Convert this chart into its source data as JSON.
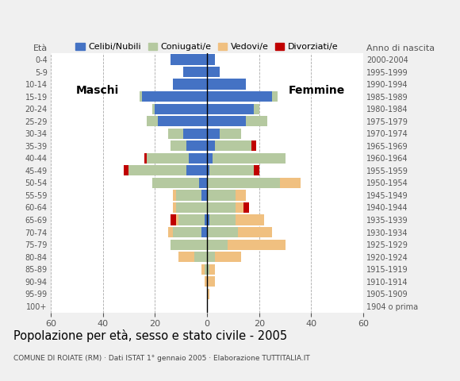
{
  "age_groups": [
    "100+",
    "95-99",
    "90-94",
    "85-89",
    "80-84",
    "75-79",
    "70-74",
    "65-69",
    "60-64",
    "55-59",
    "50-54",
    "45-49",
    "40-44",
    "35-39",
    "30-34",
    "25-29",
    "20-24",
    "15-19",
    "10-14",
    "5-9",
    "0-4"
  ],
  "birth_years": [
    "1904 o prima",
    "1905-1909",
    "1910-1914",
    "1915-1919",
    "1920-1924",
    "1925-1929",
    "1930-1934",
    "1935-1939",
    "1940-1944",
    "1945-1949",
    "1950-1954",
    "1955-1959",
    "1960-1964",
    "1965-1969",
    "1970-1974",
    "1975-1979",
    "1980-1984",
    "1985-1989",
    "1990-1994",
    "1995-1999",
    "2000-2004"
  ],
  "colors": {
    "celibe": "#4472c4",
    "coniugato": "#b5c9a0",
    "vedovo": "#f0c080",
    "divorziato": "#c00000"
  },
  "males": {
    "celibe": [
      0,
      0,
      0,
      0,
      0,
      0,
      2,
      1,
      0,
      2,
      3,
      8,
      7,
      8,
      9,
      19,
      20,
      25,
      13,
      9,
      14
    ],
    "coniugato": [
      0,
      0,
      0,
      1,
      5,
      14,
      11,
      10,
      12,
      10,
      18,
      22,
      16,
      6,
      6,
      4,
      1,
      1,
      0,
      0,
      0
    ],
    "vedovo": [
      0,
      0,
      1,
      1,
      6,
      0,
      2,
      1,
      1,
      1,
      0,
      0,
      0,
      0,
      0,
      0,
      0,
      0,
      0,
      0,
      0
    ],
    "divorziato": [
      0,
      0,
      0,
      0,
      0,
      0,
      0,
      2,
      0,
      0,
      0,
      2,
      1,
      0,
      0,
      0,
      0,
      0,
      0,
      0,
      0
    ]
  },
  "females": {
    "nubile": [
      0,
      0,
      0,
      0,
      0,
      0,
      0,
      1,
      0,
      0,
      0,
      1,
      2,
      3,
      5,
      15,
      18,
      25,
      15,
      5,
      3
    ],
    "coniugata": [
      0,
      0,
      0,
      1,
      3,
      8,
      12,
      10,
      11,
      11,
      28,
      17,
      28,
      14,
      8,
      8,
      2,
      2,
      0,
      0,
      0
    ],
    "vedova": [
      0,
      1,
      3,
      2,
      10,
      22,
      13,
      11,
      3,
      4,
      8,
      0,
      0,
      0,
      0,
      0,
      0,
      0,
      0,
      0,
      0
    ],
    "divorziata": [
      0,
      0,
      0,
      0,
      0,
      0,
      0,
      0,
      2,
      0,
      0,
      2,
      0,
      2,
      0,
      0,
      0,
      0,
      0,
      0,
      0
    ]
  },
  "title": "Popolazione per età, sesso e stato civile - 2005",
  "subtitle": "COMUNE DI ROIATE (RM) · Dati ISTAT 1° gennaio 2005 · Elaborazione TUTTITALIA.IT",
  "label_eta": "Età",
  "label_anno": "Anno di nascita",
  "label_maschi": "Maschi",
  "label_femmine": "Femmine",
  "legend_labels": [
    "Celibi/Nubili",
    "Coniugati/e",
    "Vedovi/e",
    "Divorziati/e"
  ],
  "xlim": 60,
  "background_color": "#f0f0f0",
  "plot_bg": "#ffffff"
}
